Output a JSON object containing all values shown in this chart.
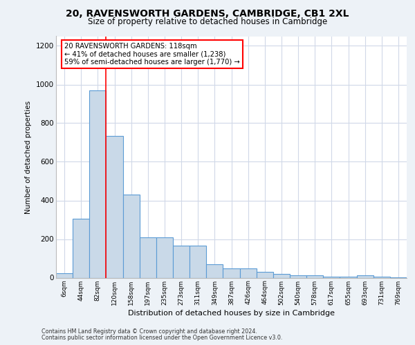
{
  "title_line1": "20, RAVENSWORTH GARDENS, CAMBRIDGE, CB1 2XL",
  "title_line2": "Size of property relative to detached houses in Cambridge",
  "xlabel": "Distribution of detached houses by size in Cambridge",
  "ylabel": "Number of detached properties",
  "footnote1": "Contains HM Land Registry data © Crown copyright and database right 2024.",
  "footnote2": "Contains public sector information licensed under the Open Government Licence v3.0.",
  "categories": [
    "6sqm",
    "44sqm",
    "82sqm",
    "120sqm",
    "158sqm",
    "197sqm",
    "235sqm",
    "273sqm",
    "311sqm",
    "349sqm",
    "387sqm",
    "426sqm",
    "464sqm",
    "502sqm",
    "540sqm",
    "578sqm",
    "617sqm",
    "655sqm",
    "693sqm",
    "731sqm",
    "769sqm"
  ],
  "values": [
    22,
    305,
    968,
    735,
    430,
    210,
    210,
    165,
    165,
    70,
    48,
    48,
    30,
    18,
    12,
    12,
    5,
    5,
    12,
    5,
    2
  ],
  "bar_color": "#c9d9e8",
  "bar_edge_color": "#5b9bd5",
  "annotation_text": "20 RAVENSWORTH GARDENS: 118sqm\n← 41% of detached houses are smaller (1,238)\n59% of semi-detached houses are larger (1,770) →",
  "vline_x": 2.5,
  "ylim": [
    0,
    1250
  ],
  "yticks": [
    0,
    200,
    400,
    600,
    800,
    1000,
    1200
  ],
  "fig_bg_color": "#edf2f7",
  "plot_bg_color": "#ffffff",
  "grid_color": "#d0d8e8"
}
